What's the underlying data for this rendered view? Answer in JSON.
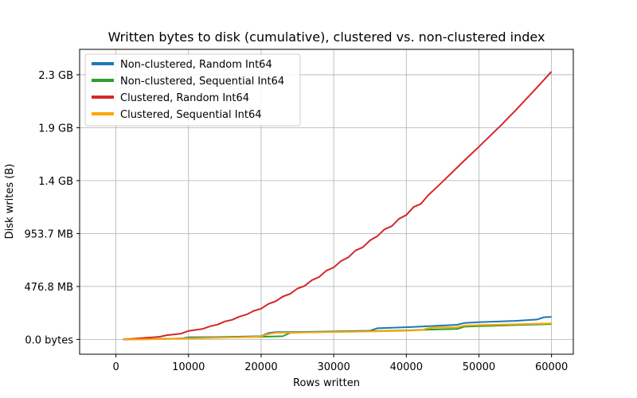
{
  "chart_data": {
    "type": "line",
    "title": "Written bytes to disk (cumulative), clustered vs. non-clustered index",
    "xlabel": "Rows written",
    "ylabel": "Disk writes (B)",
    "xlim": [
      -5000,
      63000
    ],
    "ylim_bytes": [
      -140000000,
      2740000000
    ],
    "grid": true,
    "legend_position": "top-left",
    "x_ticks": [
      {
        "value": 0,
        "label": "0"
      },
      {
        "value": 10000,
        "label": "10000"
      },
      {
        "value": 20000,
        "label": "20000"
      },
      {
        "value": 30000,
        "label": "30000"
      },
      {
        "value": 40000,
        "label": "40000"
      },
      {
        "value": 50000,
        "label": "50000"
      },
      {
        "value": 60000,
        "label": "60000"
      }
    ],
    "y_ticks": [
      {
        "value": 0,
        "label": "0.0 bytes"
      },
      {
        "value": 500000000,
        "label": "476.8 MB"
      },
      {
        "value": 1000000000,
        "label": "953.7 MB"
      },
      {
        "value": 1500000000,
        "label": "1.4 GB"
      },
      {
        "value": 2000000000,
        "label": "1.9 GB"
      },
      {
        "value": 2500000000,
        "label": "2.3 GB"
      }
    ],
    "series": [
      {
        "name": "Non-clustered, Random Int64",
        "color": "#1f77b4",
        "points": [
          [
            1000,
            0
          ],
          [
            5000,
            3000000
          ],
          [
            9000,
            8000000
          ],
          [
            10000,
            20000000
          ],
          [
            14000,
            22000000
          ],
          [
            18000,
            27000000
          ],
          [
            20000,
            30000000
          ],
          [
            21000,
            60000000
          ],
          [
            22000,
            68000000
          ],
          [
            25000,
            70000000
          ],
          [
            30000,
            75000000
          ],
          [
            35000,
            82000000
          ],
          [
            36000,
            105000000
          ],
          [
            40000,
            115000000
          ],
          [
            44000,
            128000000
          ],
          [
            47000,
            138000000
          ],
          [
            48000,
            155000000
          ],
          [
            50000,
            162000000
          ],
          [
            55000,
            175000000
          ],
          [
            58000,
            188000000
          ],
          [
            59000,
            210000000
          ],
          [
            60000,
            213000000
          ]
        ]
      },
      {
        "name": "Non-clustered, Sequential Int64",
        "color": "#2ca02c",
        "points": [
          [
            1000,
            0
          ],
          [
            5000,
            3000000
          ],
          [
            9000,
            8000000
          ],
          [
            10000,
            15000000
          ],
          [
            15000,
            20000000
          ],
          [
            20000,
            25000000
          ],
          [
            23000,
            30000000
          ],
          [
            24000,
            62000000
          ],
          [
            25000,
            65000000
          ],
          [
            30000,
            72000000
          ],
          [
            35000,
            78000000
          ],
          [
            40000,
            85000000
          ],
          [
            43000,
            92000000
          ],
          [
            47000,
            98000000
          ],
          [
            48000,
            120000000
          ],
          [
            50000,
            125000000
          ],
          [
            55000,
            135000000
          ],
          [
            60000,
            145000000
          ]
        ]
      },
      {
        "name": "Clustered, Random Int64",
        "color": "#d62728",
        "points": [
          [
            1000,
            0
          ],
          [
            3000,
            10000000
          ],
          [
            6000,
            25000000
          ],
          [
            7000,
            40000000
          ],
          [
            9000,
            55000000
          ],
          [
            10000,
            80000000
          ],
          [
            12000,
            100000000
          ],
          [
            13000,
            125000000
          ],
          [
            14000,
            140000000
          ],
          [
            15000,
            170000000
          ],
          [
            16000,
            185000000
          ],
          [
            17000,
            215000000
          ],
          [
            18000,
            235000000
          ],
          [
            19000,
            270000000
          ],
          [
            20000,
            290000000
          ],
          [
            21000,
            335000000
          ],
          [
            22000,
            360000000
          ],
          [
            23000,
            405000000
          ],
          [
            24000,
            430000000
          ],
          [
            25000,
            480000000
          ],
          [
            26000,
            505000000
          ],
          [
            27000,
            560000000
          ],
          [
            28000,
            590000000
          ],
          [
            29000,
            650000000
          ],
          [
            30000,
            680000000
          ],
          [
            31000,
            740000000
          ],
          [
            32000,
            775000000
          ],
          [
            33000,
            840000000
          ],
          [
            34000,
            870000000
          ],
          [
            35000,
            935000000
          ],
          [
            36000,
            975000000
          ],
          [
            37000,
            1040000000
          ],
          [
            38000,
            1070000000
          ],
          [
            39000,
            1140000000
          ],
          [
            40000,
            1175000000
          ],
          [
            41000,
            1250000000
          ],
          [
            42000,
            1280000000
          ],
          [
            43000,
            1360000000
          ],
          [
            45000,
            1490000000
          ],
          [
            48000,
            1690000000
          ],
          [
            50000,
            1820000000
          ],
          [
            53000,
            2020000000
          ],
          [
            55000,
            2160000000
          ],
          [
            58000,
            2380000000
          ],
          [
            60000,
            2530000000
          ]
        ]
      },
      {
        "name": "Clustered, Sequential Int64",
        "color": "#ffa500",
        "points": [
          [
            1000,
            0
          ],
          [
            5000,
            2000000
          ],
          [
            10000,
            10000000
          ],
          [
            13000,
            14000000
          ],
          [
            17000,
            20000000
          ],
          [
            20000,
            28000000
          ],
          [
            21000,
            50000000
          ],
          [
            22000,
            62000000
          ],
          [
            25000,
            65000000
          ],
          [
            30000,
            70000000
          ],
          [
            35000,
            75000000
          ],
          [
            40000,
            82000000
          ],
          [
            42000,
            87000000
          ],
          [
            43000,
            105000000
          ],
          [
            44000,
            112000000
          ],
          [
            47000,
            115000000
          ],
          [
            48000,
            130000000
          ],
          [
            50000,
            135000000
          ],
          [
            55000,
            143000000
          ],
          [
            60000,
            152000000
          ]
        ]
      }
    ]
  }
}
